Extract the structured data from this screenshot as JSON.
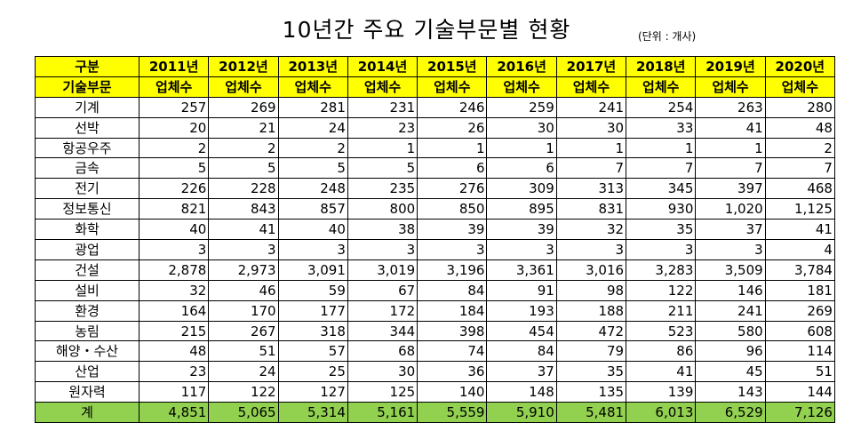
{
  "title": "10년간 주요 기술부문별 현황",
  "unit": "(단위 : 개사)",
  "header": {
    "label1": "구분",
    "label2": "기술부문",
    "years": [
      "2011년",
      "2012년",
      "2013년",
      "2014년",
      "2015년",
      "2016년",
      "2017년",
      "2018년",
      "2019년",
      "2020년"
    ],
    "sub": [
      "업체수",
      "업체수",
      "업체수",
      "업체수",
      "업체수",
      "업체수",
      "업체수",
      "업체수",
      "업체수",
      "업체수"
    ]
  },
  "rows": [
    {
      "name": "기계",
      "values": [
        "257",
        "269",
        "281",
        "231",
        "246",
        "259",
        "241",
        "254",
        "263",
        "280"
      ]
    },
    {
      "name": "선박",
      "values": [
        "20",
        "21",
        "24",
        "23",
        "26",
        "30",
        "30",
        "33",
        "41",
        "48"
      ]
    },
    {
      "name": "항공우주",
      "values": [
        "2",
        "2",
        "2",
        "1",
        "1",
        "1",
        "1",
        "1",
        "1",
        "2"
      ]
    },
    {
      "name": "금속",
      "values": [
        "5",
        "5",
        "5",
        "5",
        "6",
        "6",
        "7",
        "7",
        "7",
        "7"
      ]
    },
    {
      "name": "전기",
      "values": [
        "226",
        "228",
        "248",
        "235",
        "276",
        "309",
        "313",
        "345",
        "397",
        "468"
      ]
    },
    {
      "name": "정보통신",
      "values": [
        "821",
        "843",
        "857",
        "800",
        "850",
        "895",
        "831",
        "930",
        "1,020",
        "1,125"
      ]
    },
    {
      "name": "화학",
      "values": [
        "40",
        "41",
        "40",
        "38",
        "39",
        "39",
        "32",
        "35",
        "37",
        "41"
      ]
    },
    {
      "name": "광업",
      "values": [
        "3",
        "3",
        "3",
        "3",
        "3",
        "3",
        "3",
        "3",
        "3",
        "4"
      ]
    },
    {
      "name": "건설",
      "values": [
        "2,878",
        "2,973",
        "3,091",
        "3,019",
        "3,196",
        "3,361",
        "3,016",
        "3,283",
        "3,509",
        "3,784"
      ]
    },
    {
      "name": "설비",
      "values": [
        "32",
        "46",
        "59",
        "67",
        "84",
        "91",
        "98",
        "122",
        "146",
        "181"
      ]
    },
    {
      "name": "환경",
      "values": [
        "164",
        "170",
        "177",
        "172",
        "184",
        "193",
        "188",
        "211",
        "241",
        "269"
      ]
    },
    {
      "name": "농림",
      "values": [
        "215",
        "267",
        "318",
        "344",
        "398",
        "454",
        "472",
        "523",
        "580",
        "608"
      ]
    },
    {
      "name": "해양・수산",
      "values": [
        "48",
        "51",
        "57",
        "68",
        "74",
        "84",
        "79",
        "86",
        "96",
        "114"
      ]
    },
    {
      "name": "산업",
      "values": [
        "23",
        "24",
        "25",
        "30",
        "36",
        "37",
        "35",
        "41",
        "45",
        "51"
      ]
    },
    {
      "name": "원자력",
      "values": [
        "117",
        "122",
        "127",
        "125",
        "140",
        "148",
        "135",
        "139",
        "143",
        "144"
      ]
    }
  ],
  "total": {
    "name": "계",
    "values": [
      "4,851",
      "5,065",
      "5,314",
      "5,161",
      "5,559",
      "5,910",
      "5,481",
      "6,013",
      "6,529",
      "7,126"
    ]
  }
}
